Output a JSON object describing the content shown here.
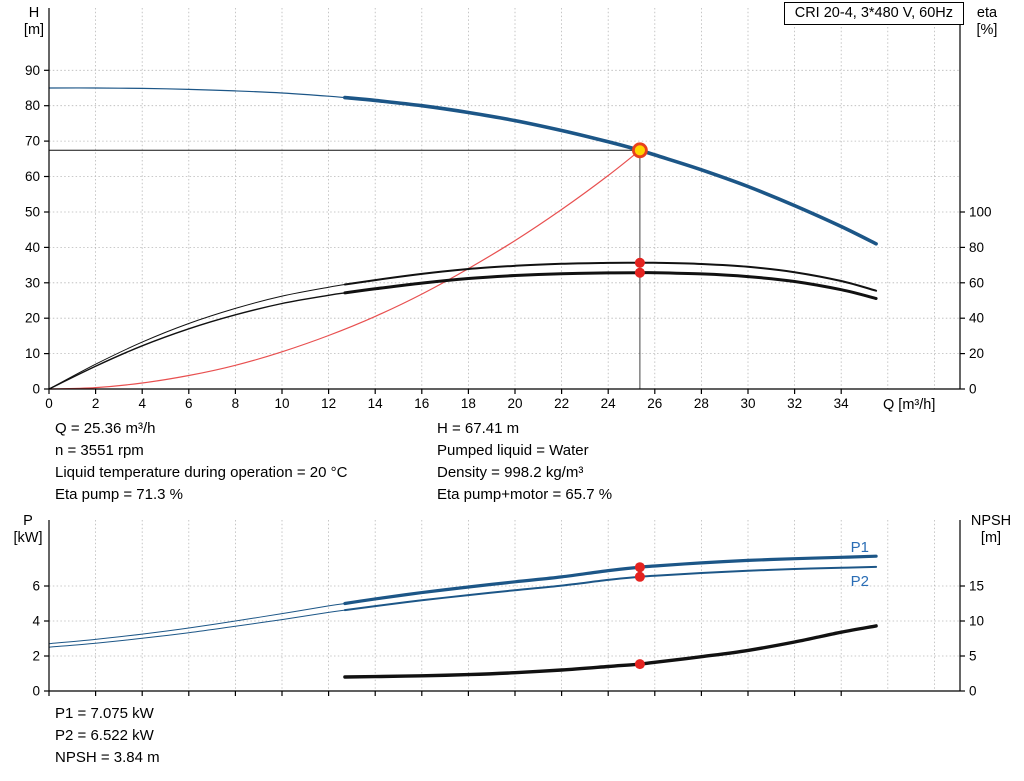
{
  "title_box": "CRI 20-4, 3*480 V, 60Hz",
  "colors": {
    "curve_blue": "#1c5687",
    "label_blue": "#2a6db5",
    "curve_black": "#111111",
    "system_red": "#e85050",
    "dot_red": "#e42320",
    "duty_fill": "#ffd500",
    "duty_ring": "#e8401c",
    "guide_gray": "#444444",
    "grid_gray": "#b8b8b8"
  },
  "axis_labels": {
    "top_left_sym": "H",
    "top_left_unit": "[m]",
    "top_right_sym": "eta",
    "top_right_unit": "[%]",
    "x_label": "Q [m³/h]",
    "bottom_left_sym": "P",
    "bottom_left_unit": "[kW]",
    "bottom_right_sym": "NPSH",
    "bottom_right_unit": "[m]"
  },
  "annotations": {
    "left": [
      "Q = 25.36 m³/h",
      "n = 3551 rpm",
      "Liquid temperature during operation = 20 °C",
      "Eta pump = 71.3 %"
    ],
    "right": [
      "H = 67.41 m",
      "Pumped liquid = Water",
      "Density = 998.2 kg/m³",
      "Eta pump+motor = 65.7 %"
    ],
    "bottom": [
      "P1 = 7.075 kW",
      "P2 = 6.522 kW",
      "NPSH = 3.84 m"
    ]
  },
  "duty_point": {
    "Q_m3h": 25.36,
    "H_m": 67.41,
    "eta_pump_pct": 71.3,
    "eta_pump_motor_pct": 65.7,
    "P1_kW": 7.075,
    "P2_kW": 6.522,
    "NPSH_m": 3.84,
    "n_rpm": 3551
  },
  "chart_data": [
    {
      "name": "qh-eta-chart",
      "type": "line",
      "title": "CRI 20-4, 3*480 V, 60Hz",
      "x_axis": {
        "label": "Q [m³/h]",
        "min": 0,
        "max": 39.1,
        "show_labels": true,
        "ticks": [
          0,
          2,
          4,
          6,
          8,
          10,
          12,
          14,
          16,
          18,
          20,
          22,
          24,
          26,
          28,
          30,
          32,
          34
        ]
      },
      "y_left": {
        "label": "H [m]",
        "min": 0,
        "max": 107.6,
        "ticks": [
          0,
          10,
          20,
          30,
          40,
          50,
          60,
          70,
          80,
          90
        ]
      },
      "y_right": {
        "label": "eta [%]",
        "min": 0,
        "max": 215.2,
        "ticks": [
          0,
          20,
          40,
          60,
          80,
          100
        ]
      },
      "grid": {
        "x": [
          2,
          4,
          6,
          8,
          10,
          12,
          14,
          16,
          18,
          20,
          22,
          24,
          26,
          28,
          30,
          32,
          34,
          36,
          38
        ],
        "y_left": [
          10,
          20,
          30,
          40,
          50,
          60,
          70,
          80,
          90
        ]
      },
      "series": [
        {
          "name": "duty-flow-guide-line",
          "axis": "left",
          "color": "#444444",
          "width": 1,
          "straight": true,
          "points": [
            [
              25.36,
              0
            ],
            [
              25.36,
              67.41
            ]
          ]
        },
        {
          "name": "duty-head-guide-line",
          "axis": "left",
          "color": "#111111",
          "width": 1,
          "straight": true,
          "points": [
            [
              0,
              67.41
            ],
            [
              25.36,
              67.41
            ]
          ]
        },
        {
          "name": "system-curve",
          "axis": "left",
          "color": "#e85050",
          "width": 1.2,
          "points": [
            [
              0,
              0
            ],
            [
              2,
              0.4
            ],
            [
              4,
              1.7
            ],
            [
              6,
              3.8
            ],
            [
              8,
              6.7
            ],
            [
              10,
              10.5
            ],
            [
              12,
              15.1
            ],
            [
              14,
              20.5
            ],
            [
              16,
              26.8
            ],
            [
              18,
              34
            ],
            [
              20,
              41.9
            ],
            [
              22,
              50.7
            ],
            [
              24,
              60.3
            ],
            [
              25.36,
              67.41
            ]
          ]
        },
        {
          "name": "qh-curve-low-flow",
          "axis": "left",
          "color": "#1c5687",
          "width": 1.2,
          "points": [
            [
              0,
              85
            ],
            [
              2,
              85
            ],
            [
              4,
              84.9
            ],
            [
              6,
              84.6
            ],
            [
              8,
              84.2
            ],
            [
              10,
              83.6
            ],
            [
              12,
              82.7
            ],
            [
              12.7,
              82.3
            ]
          ]
        },
        {
          "name": "qh-curve",
          "axis": "left",
          "color": "#1c5687",
          "width": 3.6,
          "points": [
            [
              12.7,
              82.3
            ],
            [
              14,
              81.5
            ],
            [
              16,
              80
            ],
            [
              18,
              78.1
            ],
            [
              20,
              75.8
            ],
            [
              22,
              73
            ],
            [
              24,
              69.8
            ],
            [
              25.36,
              67.41
            ],
            [
              26,
              66.1
            ],
            [
              28,
              61.9
            ],
            [
              30,
              57.2
            ],
            [
              32,
              51.8
            ],
            [
              34,
              45.9
            ],
            [
              35.5,
              41
            ]
          ]
        },
        {
          "name": "eta-pump-curve-low-flow",
          "axis": "right",
          "color": "#111111",
          "width": 1,
          "points": [
            [
              0,
              0
            ],
            [
              2,
              14
            ],
            [
              4,
              26.5
            ],
            [
              6,
              37
            ],
            [
              8,
              45.5
            ],
            [
              10,
              52.5
            ],
            [
              12,
              57.5
            ],
            [
              12.7,
              59
            ]
          ]
        },
        {
          "name": "eta-pump-curve",
          "axis": "right",
          "color": "#111111",
          "width": 2,
          "points": [
            [
              12.7,
              59
            ],
            [
              14,
              61.5
            ],
            [
              16,
              65
            ],
            [
              18,
              67.8
            ],
            [
              20,
              69.6
            ],
            [
              22,
              70.7
            ],
            [
              24,
              71.2
            ],
            [
              25.36,
              71.3
            ],
            [
              26,
              71.3
            ],
            [
              28,
              70.6
            ],
            [
              30,
              69
            ],
            [
              32,
              66
            ],
            [
              34,
              61
            ],
            [
              35.5,
              55.5
            ]
          ]
        },
        {
          "name": "eta-pump-motor-curve-low-flow",
          "axis": "right",
          "color": "#111111",
          "width": 1.4,
          "points": [
            [
              0,
              0
            ],
            [
              2,
              12.9
            ],
            [
              4,
              24.4
            ],
            [
              6,
              34
            ],
            [
              8,
              41.9
            ],
            [
              10,
              48.3
            ],
            [
              12,
              52.9
            ],
            [
              12.7,
              54.3
            ]
          ]
        },
        {
          "name": "eta-pump-motor-curve",
          "axis": "right",
          "color": "#111111",
          "width": 3,
          "points": [
            [
              12.7,
              54.3
            ],
            [
              14,
              56.6
            ],
            [
              16,
              59.8
            ],
            [
              18,
              62.4
            ],
            [
              20,
              64.1
            ],
            [
              22,
              65.1
            ],
            [
              24,
              65.6
            ],
            [
              25.36,
              65.7
            ],
            [
              26,
              65.7
            ],
            [
              28,
              65
            ],
            [
              30,
              63.5
            ],
            [
              32,
              60.7
            ],
            [
              34,
              56.1
            ],
            [
              35.5,
              51.1
            ]
          ]
        }
      ],
      "markers": [
        {
          "name": "duty-point-marker",
          "type": "duty",
          "axis": "left",
          "x": 25.36,
          "y": 67.41
        },
        {
          "name": "eta-pump-point",
          "type": "dot",
          "axis": "right",
          "x": 25.36,
          "y": 71.3
        },
        {
          "name": "eta-pump-motor-point",
          "type": "dot",
          "axis": "right",
          "x": 25.36,
          "y": 65.7
        }
      ],
      "curve_labels": []
    },
    {
      "name": "power-npsh-chart",
      "type": "line",
      "x_axis": {
        "label": "",
        "min": 0,
        "max": 39.1,
        "show_labels": false,
        "ticks": [
          0,
          2,
          4,
          6,
          8,
          10,
          12,
          14,
          16,
          18,
          20,
          22,
          24,
          26,
          28,
          30,
          32,
          34
        ]
      },
      "y_left": {
        "label": "P [kW]",
        "min": 0,
        "max": 9.77,
        "ticks": [
          0,
          2,
          4,
          6
        ]
      },
      "y_right": {
        "label": "NPSH [m]",
        "min": 0,
        "max": 24.43,
        "ticks": [
          0,
          5,
          10,
          15
        ]
      },
      "grid": {
        "x": [
          2,
          4,
          6,
          8,
          10,
          12,
          14,
          16,
          18,
          20,
          22,
          24,
          26,
          28,
          30,
          32,
          34,
          36,
          38
        ],
        "y_left": [
          2,
          4,
          6
        ]
      },
      "series": [
        {
          "name": "p1-curve-low-flow",
          "axis": "left",
          "color": "#1c5687",
          "width": 1,
          "points": [
            [
              0,
              2.7
            ],
            [
              2,
              2.95
            ],
            [
              4,
              3.25
            ],
            [
              6,
              3.6
            ],
            [
              8,
              4
            ],
            [
              10,
              4.42
            ],
            [
              12,
              4.86
            ],
            [
              12.7,
              5
            ]
          ]
        },
        {
          "name": "p1-curve",
          "axis": "left",
          "color": "#1c5687",
          "width": 3.2,
          "points": [
            [
              12.7,
              5
            ],
            [
              14,
              5.26
            ],
            [
              16,
              5.62
            ],
            [
              18,
              5.94
            ],
            [
              20,
              6.24
            ],
            [
              22,
              6.52
            ],
            [
              24,
              6.88
            ],
            [
              25.36,
              7.075
            ],
            [
              26,
              7.14
            ],
            [
              28,
              7.32
            ],
            [
              30,
              7.46
            ],
            [
              32,
              7.56
            ],
            [
              34,
              7.64
            ],
            [
              35.5,
              7.7
            ]
          ]
        },
        {
          "name": "p2-curve-low-flow",
          "axis": "left",
          "color": "#1c5687",
          "width": 1,
          "points": [
            [
              0,
              2.5
            ],
            [
              2,
              2.73
            ],
            [
              4,
              3.01
            ],
            [
              6,
              3.33
            ],
            [
              8,
              3.7
            ],
            [
              10,
              4.08
            ],
            [
              12,
              4.49
            ],
            [
              12.7,
              4.62
            ]
          ]
        },
        {
          "name": "p2-curve",
          "axis": "left",
          "color": "#1c5687",
          "width": 2,
          "points": [
            [
              12.7,
              4.62
            ],
            [
              14,
              4.85
            ],
            [
              16,
              5.18
            ],
            [
              18,
              5.48
            ],
            [
              20,
              5.76
            ],
            [
              22,
              6.02
            ],
            [
              24,
              6.35
            ],
            [
              25.36,
              6.522
            ],
            [
              26,
              6.58
            ],
            [
              28,
              6.74
            ],
            [
              30,
              6.87
            ],
            [
              32,
              6.97
            ],
            [
              34,
              7.04
            ],
            [
              35.5,
              7.09
            ]
          ]
        },
        {
          "name": "npsh-curve",
          "axis": "right",
          "color": "#111111",
          "width": 3.4,
          "points": [
            [
              12.7,
              2
            ],
            [
              14,
              2.06
            ],
            [
              16,
              2.17
            ],
            [
              18,
              2.35
            ],
            [
              20,
              2.62
            ],
            [
              22,
              3
            ],
            [
              24,
              3.5
            ],
            [
              25.36,
              3.84
            ],
            [
              26,
              4.1
            ],
            [
              28,
              4.9
            ],
            [
              30,
              5.8
            ],
            [
              32,
              7
            ],
            [
              34,
              8.4
            ],
            [
              35.5,
              9.3
            ]
          ]
        }
      ],
      "markers": [
        {
          "name": "p1-point",
          "type": "dot",
          "axis": "left",
          "x": 25.36,
          "y": 7.075
        },
        {
          "name": "p2-point",
          "type": "dot",
          "axis": "left",
          "x": 25.36,
          "y": 6.522
        },
        {
          "name": "npsh-point",
          "type": "dot",
          "axis": "right",
          "x": 25.36,
          "y": 3.84
        }
      ],
      "curve_labels": [
        {
          "name": "p1-label",
          "text": "P1",
          "axis": "left",
          "x": 34.8,
          "y": 7.95
        },
        {
          "name": "p2-label",
          "text": "P2",
          "axis": "left",
          "x": 34.8,
          "y": 6.0
        }
      ]
    }
  ]
}
